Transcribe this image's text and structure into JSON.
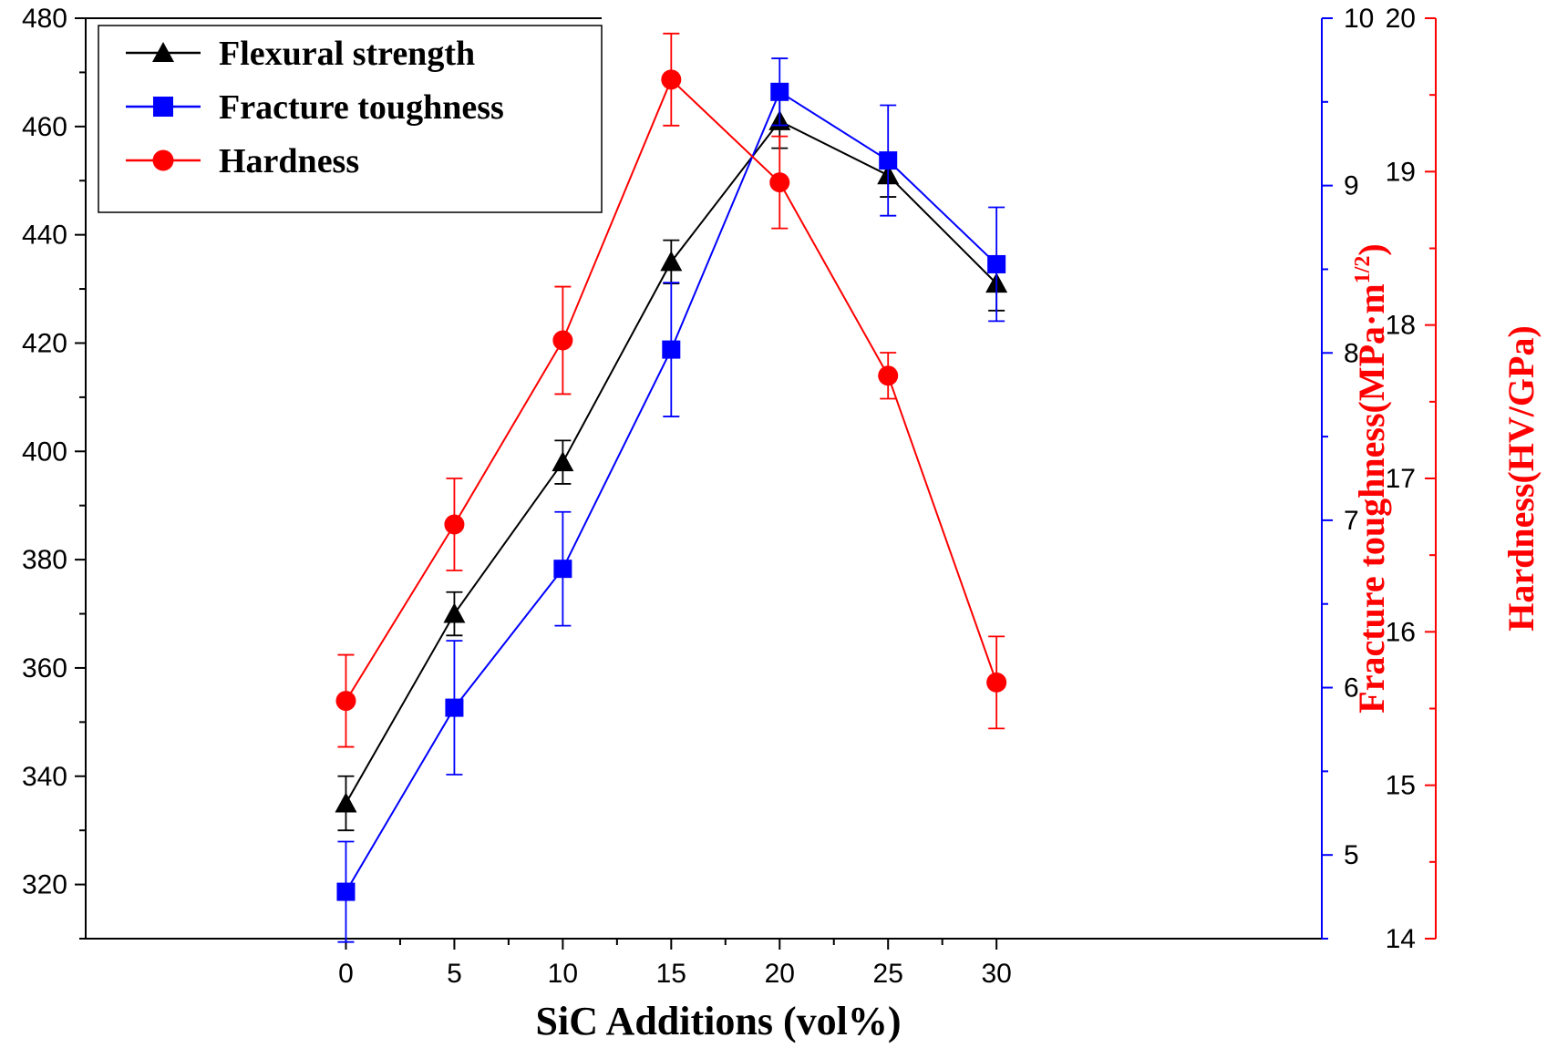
{
  "chart_data": {
    "type": "line",
    "x": [
      0,
      5,
      10,
      15,
      20,
      25,
      30
    ],
    "xlabel": "SiC Additions (vol%)",
    "xlim": [
      -12,
      45
    ],
    "x_ticks": [
      "0",
      "5",
      "10",
      "15",
      "20",
      "25",
      "30"
    ],
    "legend_position": "top-left",
    "grid": false,
    "series": [
      {
        "name": "Flexural strength",
        "axis": "left",
        "marker": "triangle",
        "color": "#000000",
        "values": [
          335,
          370,
          398,
          435,
          461,
          451,
          431
        ],
        "errors": [
          5,
          4,
          4,
          4,
          5,
          4,
          5
        ]
      },
      {
        "name": "Fracture toughness",
        "axis": "right1",
        "marker": "square",
        "color": "#0000ff",
        "values": [
          4.78,
          5.88,
          6.71,
          8.02,
          9.56,
          9.15,
          8.53
        ],
        "errors": [
          0.3,
          0.4,
          0.34,
          0.4,
          0.2,
          0.33,
          0.34
        ]
      },
      {
        "name": "Hardness",
        "axis": "right2",
        "marker": "circle",
        "color": "#ff0000",
        "values": [
          15.55,
          16.7,
          17.9,
          19.6,
          18.93,
          17.67,
          15.67
        ],
        "errors": [
          0.3,
          0.3,
          0.35,
          0.3,
          0.3,
          0.15,
          0.3
        ]
      }
    ],
    "axes": {
      "left": {
        "label": "",
        "min": 310,
        "max": 480,
        "ticks": [
          "320",
          "340",
          "360",
          "380",
          "400",
          "420",
          "440",
          "460",
          "480"
        ],
        "color": "#000000"
      },
      "right1": {
        "label": "Fracture toughness(MPa·m",
        "label_sup": "1/2",
        "label_close": ")",
        "label_color": "#ff0000",
        "min": 4.5,
        "max": 10,
        "ticks": [
          "5",
          "6",
          "7",
          "8",
          "9",
          "10"
        ],
        "color": "#0000ff"
      },
      "right2": {
        "label": "Hardness(HV/GPa)",
        "min": 14,
        "max": 20,
        "ticks": [
          "14",
          "15",
          "16",
          "17",
          "18",
          "19",
          "20"
        ],
        "color": "#ff0000"
      }
    }
  }
}
